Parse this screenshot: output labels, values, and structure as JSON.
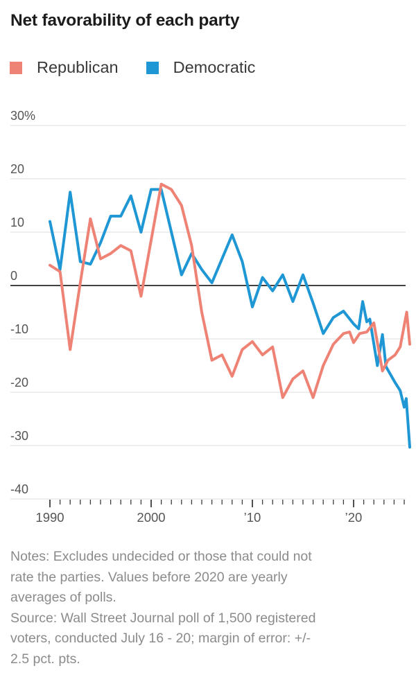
{
  "title": "Net favorability of each party",
  "legend": {
    "republican": {
      "label": "Republican",
      "color": "#ee8274"
    },
    "democratic": {
      "label": "Democratic",
      "color": "#1f97d4"
    }
  },
  "footnotes": {
    "notes": "Notes: Excludes undecided or those that could not\nrate the parties. Values before 2020 are yearly\naverages of polls.",
    "source": "Source: Wall Street Journal poll of 1,500 registered\nvoters, conducted July 16 - 20; margin of error: +/-\n2.5 pct. pts."
  },
  "chart_data": {
    "type": "line",
    "title": "Net favorability of each party",
    "x_axis": {
      "range": [
        1990,
        2025.6
      ],
      "minor_ticks": {
        "from": 1990,
        "to": 2025,
        "step": 1
      },
      "major_ticks": [
        {
          "year": 1990,
          "label": "1990"
        },
        {
          "year": 2000,
          "label": "2000"
        },
        {
          "year": 2010,
          "label": "’10"
        },
        {
          "year": 2020,
          "label": "’20"
        }
      ]
    },
    "y_axis": {
      "unit": "%",
      "range": [
        -40,
        30
      ],
      "zero_line_color": "#414141",
      "gridline_color": "#e4e4e4",
      "gridlines": [
        {
          "value": 30,
          "label": "30%"
        },
        {
          "value": 20,
          "label": "20"
        },
        {
          "value": 10,
          "label": "10"
        },
        {
          "value": 0,
          "label": "0"
        },
        {
          "value": -10,
          "label": "-10"
        },
        {
          "value": -20,
          "label": "-20"
        },
        {
          "value": -30,
          "label": "-30"
        },
        {
          "value": -40,
          "label": "-40"
        }
      ]
    },
    "series": [
      {
        "name": "Republican",
        "color": "#ee8274",
        "points": [
          [
            1990,
            3.8
          ],
          [
            1991,
            2.6
          ],
          [
            1992,
            -12
          ],
          [
            1993,
            0.5
          ],
          [
            1994,
            12.5
          ],
          [
            1995,
            5
          ],
          [
            1996,
            6
          ],
          [
            1997,
            7.5
          ],
          [
            1998,
            6.5
          ],
          [
            1999,
            -2
          ],
          [
            2000,
            8.5
          ],
          [
            2001,
            19
          ],
          [
            2002,
            18
          ],
          [
            2003,
            15
          ],
          [
            2004,
            7.5
          ],
          [
            2005,
            -5
          ],
          [
            2006,
            -14
          ],
          [
            2007,
            -13
          ],
          [
            2008,
            -17
          ],
          [
            2009,
            -12
          ],
          [
            2010,
            -10.5
          ],
          [
            2011,
            -13
          ],
          [
            2012,
            -11.5
          ],
          [
            2013,
            -21
          ],
          [
            2014,
            -17.5
          ],
          [
            2015,
            -16
          ],
          [
            2016,
            -21
          ],
          [
            2017,
            -15
          ],
          [
            2018,
            -11
          ],
          [
            2019,
            -9
          ],
          [
            2019.6,
            -8.7
          ],
          [
            2020.0,
            -10.7
          ],
          [
            2020.6,
            -9
          ],
          [
            2021.3,
            -8.7
          ],
          [
            2022.0,
            -7
          ],
          [
            2022.85,
            -16
          ],
          [
            2023.4,
            -14
          ],
          [
            2024.1,
            -13
          ],
          [
            2024.6,
            -11.5
          ],
          [
            2025.25,
            -5
          ],
          [
            2025.55,
            -11
          ]
        ]
      },
      {
        "name": "Democratic",
        "color": "#1f97d4",
        "points": [
          [
            1990,
            12
          ],
          [
            1991,
            3
          ],
          [
            1992,
            17.5
          ],
          [
            1993,
            4.5
          ],
          [
            1994,
            4
          ],
          [
            1995,
            8
          ],
          [
            1996,
            13
          ],
          [
            1997,
            13
          ],
          [
            1998,
            16.8
          ],
          [
            1999,
            10
          ],
          [
            2000,
            18
          ],
          [
            2001,
            18
          ],
          [
            2002,
            10
          ],
          [
            2003,
            2
          ],
          [
            2004,
            6
          ],
          [
            2005,
            3
          ],
          [
            2006,
            0.5
          ],
          [
            2007,
            5
          ],
          [
            2008,
            9.5
          ],
          [
            2009,
            4.5
          ],
          [
            2010,
            -4
          ],
          [
            2011,
            1.5
          ],
          [
            2012,
            -1
          ],
          [
            2013,
            2
          ],
          [
            2014,
            -3
          ],
          [
            2015,
            2
          ],
          [
            2016,
            -3.3
          ],
          [
            2017,
            -9
          ],
          [
            2018,
            -6
          ],
          [
            2019,
            -4.8
          ],
          [
            2020.0,
            -7.2
          ],
          [
            2020.5,
            -8.1
          ],
          [
            2020.9,
            -3
          ],
          [
            2021.3,
            -6.8
          ],
          [
            2021.6,
            -6.3
          ],
          [
            2022.35,
            -15
          ],
          [
            2022.85,
            -9.2
          ],
          [
            2023.2,
            -15.2
          ],
          [
            2024.1,
            -18.2
          ],
          [
            2024.6,
            -19.7
          ],
          [
            2025.0,
            -22.8
          ],
          [
            2025.2,
            -21.2
          ],
          [
            2025.55,
            -30.3
          ]
        ]
      }
    ]
  }
}
